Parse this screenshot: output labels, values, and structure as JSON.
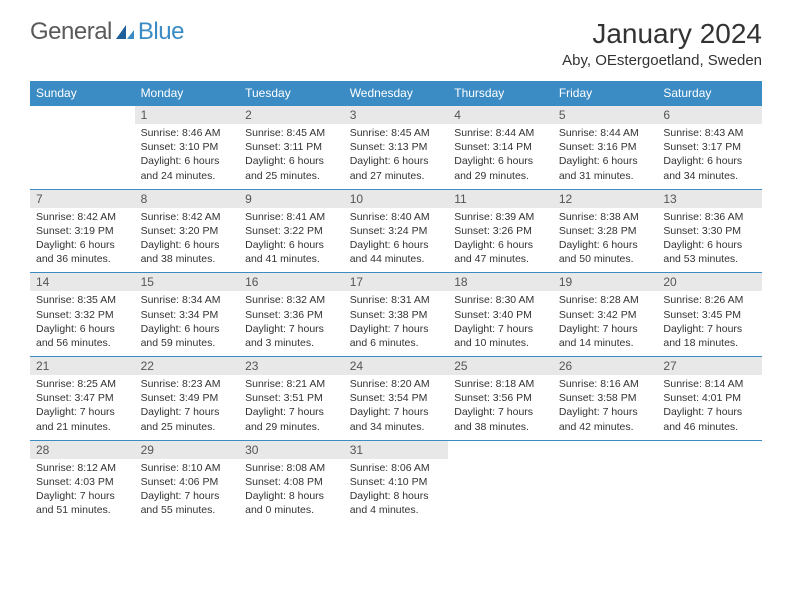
{
  "logo": {
    "text1": "General",
    "text2": "Blue"
  },
  "title": "January 2024",
  "location": "Aby, OEstergoetland, Sweden",
  "headers": {
    "bg": "#3b8bc4",
    "fg": "#ffffff"
  },
  "colors": {
    "border": "#3b8bc4",
    "daybg": "#e8e8e8",
    "text": "#333333"
  },
  "weekdays": [
    "Sunday",
    "Monday",
    "Tuesday",
    "Wednesday",
    "Thursday",
    "Friday",
    "Saturday"
  ],
  "weeks": [
    {
      "days": [
        null,
        {
          "n": "1",
          "sr": "8:46 AM",
          "ss": "3:10 PM",
          "d1": "6 hours",
          "d2": "and 24 minutes."
        },
        {
          "n": "2",
          "sr": "8:45 AM",
          "ss": "3:11 PM",
          "d1": "6 hours",
          "d2": "and 25 minutes."
        },
        {
          "n": "3",
          "sr": "8:45 AM",
          "ss": "3:13 PM",
          "d1": "6 hours",
          "d2": "and 27 minutes."
        },
        {
          "n": "4",
          "sr": "8:44 AM",
          "ss": "3:14 PM",
          "d1": "6 hours",
          "d2": "and 29 minutes."
        },
        {
          "n": "5",
          "sr": "8:44 AM",
          "ss": "3:16 PM",
          "d1": "6 hours",
          "d2": "and 31 minutes."
        },
        {
          "n": "6",
          "sr": "8:43 AM",
          "ss": "3:17 PM",
          "d1": "6 hours",
          "d2": "and 34 minutes."
        }
      ]
    },
    {
      "days": [
        {
          "n": "7",
          "sr": "8:42 AM",
          "ss": "3:19 PM",
          "d1": "6 hours",
          "d2": "and 36 minutes."
        },
        {
          "n": "8",
          "sr": "8:42 AM",
          "ss": "3:20 PM",
          "d1": "6 hours",
          "d2": "and 38 minutes."
        },
        {
          "n": "9",
          "sr": "8:41 AM",
          "ss": "3:22 PM",
          "d1": "6 hours",
          "d2": "and 41 minutes."
        },
        {
          "n": "10",
          "sr": "8:40 AM",
          "ss": "3:24 PM",
          "d1": "6 hours",
          "d2": "and 44 minutes."
        },
        {
          "n": "11",
          "sr": "8:39 AM",
          "ss": "3:26 PM",
          "d1": "6 hours",
          "d2": "and 47 minutes."
        },
        {
          "n": "12",
          "sr": "8:38 AM",
          "ss": "3:28 PM",
          "d1": "6 hours",
          "d2": "and 50 minutes."
        },
        {
          "n": "13",
          "sr": "8:36 AM",
          "ss": "3:30 PM",
          "d1": "6 hours",
          "d2": "and 53 minutes."
        }
      ]
    },
    {
      "days": [
        {
          "n": "14",
          "sr": "8:35 AM",
          "ss": "3:32 PM",
          "d1": "6 hours",
          "d2": "and 56 minutes."
        },
        {
          "n": "15",
          "sr": "8:34 AM",
          "ss": "3:34 PM",
          "d1": "6 hours",
          "d2": "and 59 minutes."
        },
        {
          "n": "16",
          "sr": "8:32 AM",
          "ss": "3:36 PM",
          "d1": "7 hours",
          "d2": "and 3 minutes."
        },
        {
          "n": "17",
          "sr": "8:31 AM",
          "ss": "3:38 PM",
          "d1": "7 hours",
          "d2": "and 6 minutes."
        },
        {
          "n": "18",
          "sr": "8:30 AM",
          "ss": "3:40 PM",
          "d1": "7 hours",
          "d2": "and 10 minutes."
        },
        {
          "n": "19",
          "sr": "8:28 AM",
          "ss": "3:42 PM",
          "d1": "7 hours",
          "d2": "and 14 minutes."
        },
        {
          "n": "20",
          "sr": "8:26 AM",
          "ss": "3:45 PM",
          "d1": "7 hours",
          "d2": "and 18 minutes."
        }
      ]
    },
    {
      "days": [
        {
          "n": "21",
          "sr": "8:25 AM",
          "ss": "3:47 PM",
          "d1": "7 hours",
          "d2": "and 21 minutes."
        },
        {
          "n": "22",
          "sr": "8:23 AM",
          "ss": "3:49 PM",
          "d1": "7 hours",
          "d2": "and 25 minutes."
        },
        {
          "n": "23",
          "sr": "8:21 AM",
          "ss": "3:51 PM",
          "d1": "7 hours",
          "d2": "and 29 minutes."
        },
        {
          "n": "24",
          "sr": "8:20 AM",
          "ss": "3:54 PM",
          "d1": "7 hours",
          "d2": "and 34 minutes."
        },
        {
          "n": "25",
          "sr": "8:18 AM",
          "ss": "3:56 PM",
          "d1": "7 hours",
          "d2": "and 38 minutes."
        },
        {
          "n": "26",
          "sr": "8:16 AM",
          "ss": "3:58 PM",
          "d1": "7 hours",
          "d2": "and 42 minutes."
        },
        {
          "n": "27",
          "sr": "8:14 AM",
          "ss": "4:01 PM",
          "d1": "7 hours",
          "d2": "and 46 minutes."
        }
      ]
    },
    {
      "days": [
        {
          "n": "28",
          "sr": "8:12 AM",
          "ss": "4:03 PM",
          "d1": "7 hours",
          "d2": "and 51 minutes."
        },
        {
          "n": "29",
          "sr": "8:10 AM",
          "ss": "4:06 PM",
          "d1": "7 hours",
          "d2": "and 55 minutes."
        },
        {
          "n": "30",
          "sr": "8:08 AM",
          "ss": "4:08 PM",
          "d1": "8 hours",
          "d2": "and 0 minutes."
        },
        {
          "n": "31",
          "sr": "8:06 AM",
          "ss": "4:10 PM",
          "d1": "8 hours",
          "d2": "and 4 minutes."
        },
        null,
        null,
        null
      ]
    }
  ],
  "labels": {
    "sunrise": "Sunrise:",
    "sunset": "Sunset:",
    "daylight": "Daylight:"
  }
}
